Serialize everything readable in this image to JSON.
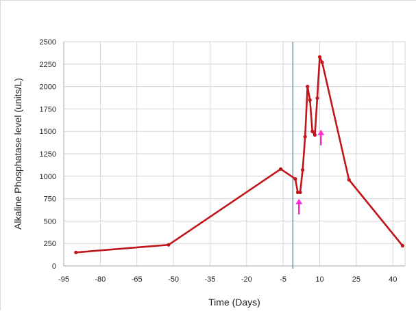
{
  "chart_data": {
    "type": "line",
    "title": "",
    "xlabel": "Time (Days)",
    "ylabel": "Alkaline Phosphatase level (units/L)",
    "xlim": [
      -95,
      45
    ],
    "ylim": [
      0,
      2500
    ],
    "x_ticks": [
      -95,
      -80,
      -65,
      -50,
      -35,
      -20,
      -5,
      10,
      25,
      40
    ],
    "y_ticks": [
      0,
      250,
      500,
      750,
      1000,
      1250,
      1500,
      1750,
      2000,
      2250,
      2500
    ],
    "x_tick_labels": [
      "-95",
      "-80",
      "-65",
      "-50",
      "-35",
      "-20",
      "-5",
      "10",
      "25",
      "40"
    ],
    "y_tick_labels": [
      "0",
      "250",
      "500",
      "750",
      "1000",
      "1250",
      "1500",
      "1750",
      "2000",
      "2250",
      "2500"
    ],
    "grid": true,
    "legend": "none",
    "series": [
      {
        "color": "#c0151b",
        "x": [
          -90,
          -52,
          -6,
          0,
          1,
          2,
          3,
          4,
          5,
          6,
          7,
          8,
          9,
          10,
          11,
          22,
          44
        ],
        "y": [
          150,
          235,
          1080,
          970,
          820,
          820,
          1070,
          1440,
          2000,
          1850,
          1500,
          1460,
          1870,
          2330,
          2270,
          960,
          225
        ]
      }
    ],
    "vertical_line": {
      "x": -1,
      "color": "#2b8fb3"
    },
    "annotations": [
      {
        "type": "arrow-up",
        "x": 1.5,
        "y": 650,
        "color": "#ff2fd2"
      },
      {
        "type": "arrow-up",
        "x": 10.5,
        "y": 1420,
        "color": "#ff2fd2"
      }
    ]
  }
}
